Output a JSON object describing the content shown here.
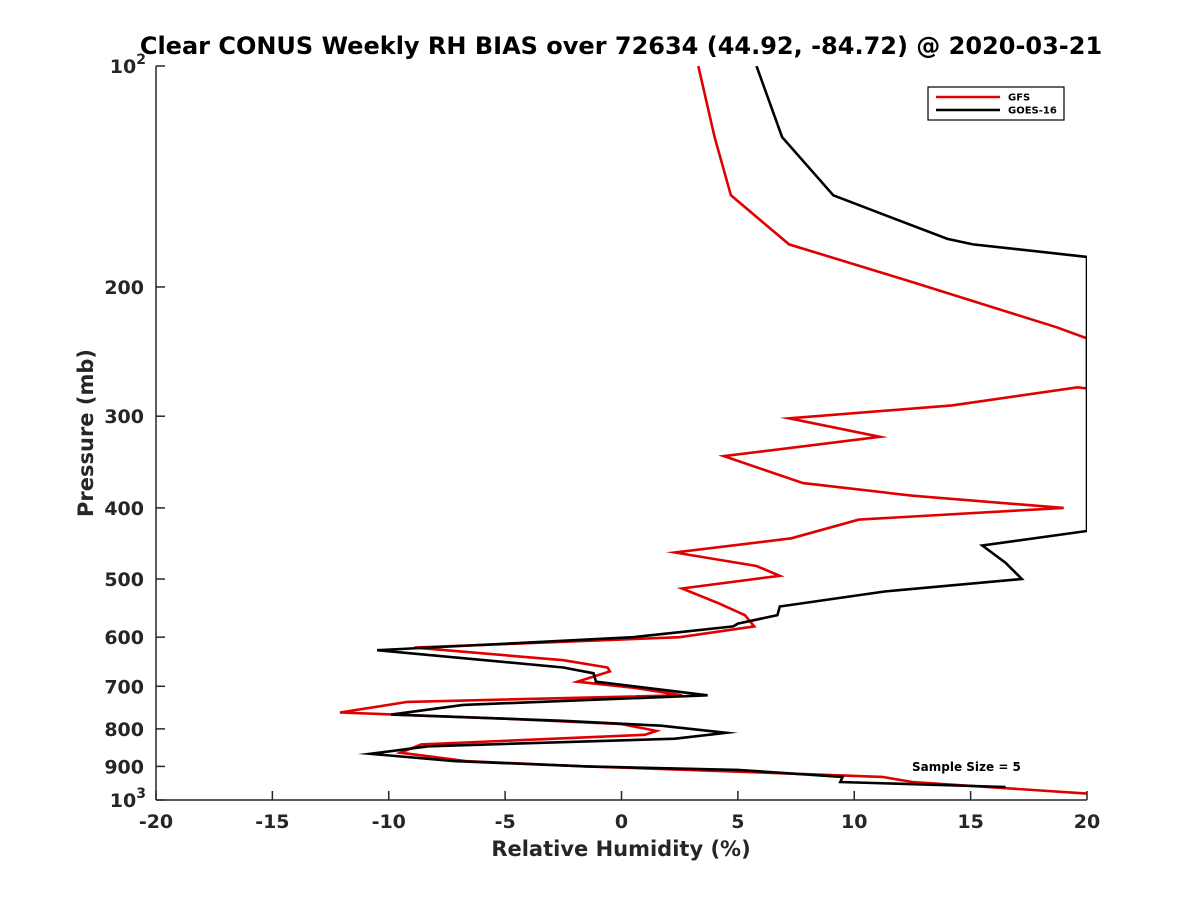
{
  "chart_data": {
    "type": "line",
    "title": "Clear CONUS Weekly RH BIAS over 72634 (44.92, -84.72) @ 2020-03-21",
    "xlabel": "Relative Humidity (%)",
    "ylabel": "Pressure (mb)",
    "xlim": [
      -20,
      20
    ],
    "ylim": [
      100,
      1000
    ],
    "yscale": "log",
    "y_reversed": true,
    "x_ticks": [
      -20,
      -15,
      -10,
      -5,
      0,
      5,
      10,
      15,
      20
    ],
    "x_tick_labels": [
      "-20",
      "-15",
      "-10",
      "-5",
      "0",
      "5",
      "10",
      "15",
      "20"
    ],
    "y_ticks": [
      {
        "value": 100,
        "base": "10",
        "exp": "2"
      },
      {
        "value": 200,
        "label": "200"
      },
      {
        "value": 300,
        "label": "300"
      },
      {
        "value": 400,
        "label": "400"
      },
      {
        "value": 500,
        "label": "500"
      },
      {
        "value": 600,
        "label": "600"
      },
      {
        "value": 700,
        "label": "700"
      },
      {
        "value": 800,
        "label": "800"
      },
      {
        "value": 900,
        "label": "900"
      },
      {
        "value": 1000,
        "base": "10",
        "exp": "3"
      }
    ],
    "legend": {
      "position": "top-right",
      "entries": [
        "GFS",
        "GOES-16"
      ]
    },
    "annotation": "Sample Size = 5",
    "series": [
      {
        "name": "GFS",
        "color": "#e00000",
        "points": [
          [
            3.3,
            100
          ],
          [
            4.0,
            125
          ],
          [
            4.7,
            150
          ],
          [
            7.2,
            175
          ],
          [
            12.5,
            197
          ],
          [
            18.7,
            227
          ],
          [
            20.0,
            235
          ],
          [
            20.0,
            275
          ],
          [
            19.6,
            274
          ],
          [
            14.2,
            290
          ],
          [
            7.2,
            302
          ],
          [
            11.1,
            320
          ],
          [
            4.4,
            340
          ],
          [
            7.8,
            370
          ],
          [
            12.5,
            385
          ],
          [
            19.0,
            400
          ],
          [
            10.2,
            415
          ],
          [
            7.3,
            440
          ],
          [
            2.3,
            460
          ],
          [
            5.8,
            480
          ],
          [
            6.8,
            495
          ],
          [
            2.6,
            515
          ],
          [
            4.2,
            540
          ],
          [
            5.3,
            560
          ],
          [
            5.7,
            580
          ],
          [
            2.5,
            600
          ],
          [
            -8.9,
            620
          ],
          [
            -2.5,
            645
          ],
          [
            -0.6,
            660
          ],
          [
            -0.5,
            668
          ],
          [
            -1.9,
            690
          ],
          [
            0.5,
            703
          ],
          [
            2.6,
            720
          ],
          [
            -9.2,
            735
          ],
          [
            -12.1,
            760
          ],
          [
            -5.0,
            775
          ],
          [
            0.0,
            788
          ],
          [
            1.5,
            805
          ],
          [
            1.0,
            815
          ],
          [
            -8.6,
            840
          ],
          [
            -9.5,
            862
          ],
          [
            -6.7,
            885
          ],
          [
            -1.5,
            900
          ],
          [
            5.0,
            915
          ],
          [
            11.2,
            930
          ],
          [
            12.5,
            945
          ],
          [
            20.0,
            980
          ]
        ]
      },
      {
        "name": "GOES-16",
        "color": "#000000",
        "points": [
          [
            5.8,
            100
          ],
          [
            6.9,
            125
          ],
          [
            9.1,
            150
          ],
          [
            14.0,
            172
          ],
          [
            15.1,
            175
          ],
          [
            20.0,
            182
          ],
          [
            20.0,
            430
          ],
          [
            15.5,
            450
          ],
          [
            16.5,
            475
          ],
          [
            17.2,
            500
          ],
          [
            11.3,
            520
          ],
          [
            6.8,
            545
          ],
          [
            6.7,
            560
          ],
          [
            5.0,
            575
          ],
          [
            4.8,
            580
          ],
          [
            0.5,
            600
          ],
          [
            -10.5,
            625
          ],
          [
            -2.5,
            660
          ],
          [
            -1.2,
            672
          ],
          [
            -1.1,
            690
          ],
          [
            3.7,
            720
          ],
          [
            -6.8,
            742
          ],
          [
            -9.9,
            765
          ],
          [
            -2.5,
            780
          ],
          [
            1.7,
            792
          ],
          [
            4.5,
            810
          ],
          [
            2.3,
            825
          ],
          [
            -8.3,
            845
          ],
          [
            -10.8,
            865
          ],
          [
            -7.2,
            885
          ],
          [
            -1.5,
            900
          ],
          [
            5.0,
            910
          ],
          [
            9.5,
            930
          ],
          [
            9.4,
            945
          ],
          [
            16.5,
            960
          ]
        ]
      }
    ]
  }
}
